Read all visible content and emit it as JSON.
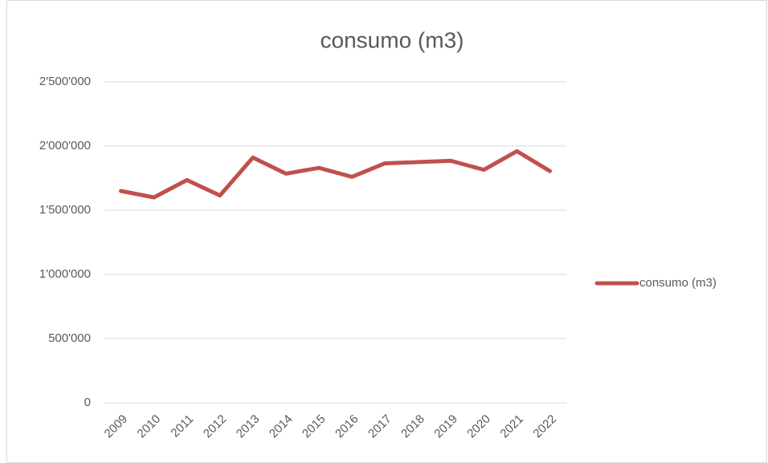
{
  "chart_data": {
    "type": "line",
    "title": "consumo (m3)",
    "categories": [
      "2009",
      "2010",
      "2011",
      "2012",
      "2013",
      "2014",
      "2015",
      "2016",
      "2017",
      "2018",
      "2019",
      "2020",
      "2021",
      "2022"
    ],
    "series": [
      {
        "name": "consumo (m3)",
        "color": "#c0504d",
        "values": [
          1650000,
          1600000,
          1735000,
          1615000,
          1910000,
          1785000,
          1830000,
          1760000,
          1865000,
          1875000,
          1885000,
          1815000,
          1960000,
          1805000
        ]
      }
    ],
    "ylim": [
      0,
      2500000
    ],
    "yticks": [
      0,
      {
        "value": 500000,
        "label": "500'000"
      },
      {
        "value": 1000000,
        "label": "1'000'000"
      },
      {
        "value": 1500000,
        "label": "1'500'000"
      },
      {
        "value": 2000000,
        "label": "2'000'000"
      },
      {
        "value": 2500000,
        "label": "2'500'000"
      }
    ],
    "grid": true,
    "legend": "right"
  }
}
